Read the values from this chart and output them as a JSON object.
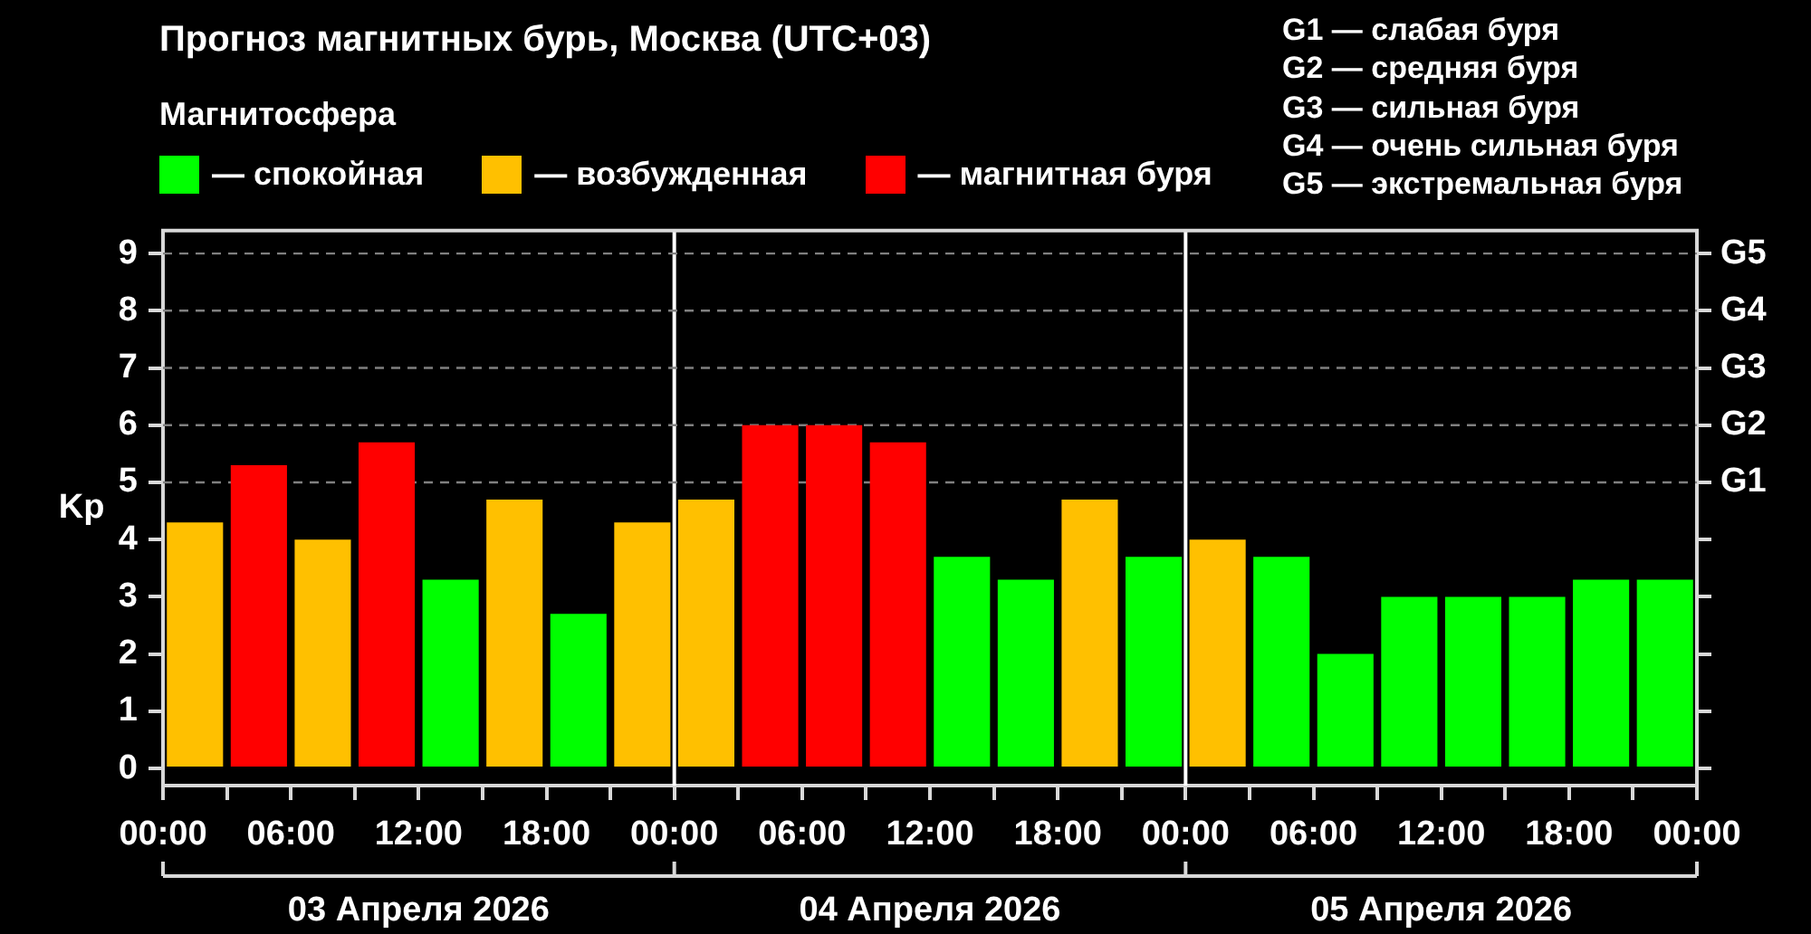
{
  "chart_data": {
    "type": "bar",
    "title": "Прогноз магнитных бурь, Москва (UTC+03)",
    "ylabel": "Kp",
    "legend": "top left",
    "legend_title": "Магнитосфера",
    "x": [
      "2026-04-03T01:30",
      "2026-04-03T04:30",
      "2026-04-03T07:30",
      "2026-04-03T10:30",
      "2026-04-03T13:30",
      "2026-04-03T16:30",
      "2026-04-03T19:30",
      "2026-04-03T22:30",
      "2026-04-04T01:30",
      "2026-04-04T04:30",
      "2026-04-04T07:30",
      "2026-04-04T10:30",
      "2026-04-04T13:30",
      "2026-04-04T16:30",
      "2026-04-04T19:30",
      "2026-04-04T22:30",
      "2026-04-05T01:30",
      "2026-04-05T04:30",
      "2026-04-05T07:30",
      "2026-04-05T10:30",
      "2026-04-05T13:30",
      "2026-04-05T16:30",
      "2026-04-05T19:30",
      "2026-04-05T22:30"
    ],
    "xlim": [
      "2026-04-03T00:00",
      "2026-04-06T00:00"
    ],
    "xticks": [
      {
        "value": "2026-04-03T00:00",
        "label": "00:00"
      },
      {
        "value": "2026-04-03T03:00",
        "label": null
      },
      {
        "value": "2026-04-03T06:00",
        "label": "06:00"
      },
      {
        "value": "2026-04-03T09:00",
        "label": null
      },
      {
        "value": "2026-04-03T12:00",
        "label": "12:00"
      },
      {
        "value": "2026-04-03T15:00",
        "label": null
      },
      {
        "value": "2026-04-03T18:00",
        "label": "18:00"
      },
      {
        "value": "2026-04-03T21:00",
        "label": null
      },
      {
        "value": "2026-04-04T00:00",
        "label": "00:00"
      },
      {
        "value": "2026-04-04T03:00",
        "label": null
      },
      {
        "value": "2026-04-04T06:00",
        "label": "06:00"
      },
      {
        "value": "2026-04-04T09:00",
        "label": null
      },
      {
        "value": "2026-04-04T12:00",
        "label": "12:00"
      },
      {
        "value": "2026-04-04T15:00",
        "label": null
      },
      {
        "value": "2026-04-04T18:00",
        "label": "18:00"
      },
      {
        "value": "2026-04-04T21:00",
        "label": null
      },
      {
        "value": "2026-04-05T00:00",
        "label": "00:00"
      },
      {
        "value": "2026-04-05T03:00",
        "label": null
      },
      {
        "value": "2026-04-05T06:00",
        "label": "06:00"
      },
      {
        "value": "2026-04-05T09:00",
        "label": null
      },
      {
        "value": "2026-04-05T12:00",
        "label": "12:00"
      },
      {
        "value": "2026-04-05T15:00",
        "label": null
      },
      {
        "value": "2026-04-05T18:00",
        "label": "18:00"
      },
      {
        "value": "2026-04-05T21:00",
        "label": null
      },
      {
        "value": "2026-04-06T00:00",
        "label": "00:00"
      }
    ],
    "x2lim": [
      "2026-04-03T00:00",
      "2026-04-06T00:00"
    ],
    "x2ticks": [
      {
        "value": "2026-04-03T00:00",
        "label": null
      },
      {
        "value": "2026-04-03T12:00",
        "label": "03 Апреля 2026"
      },
      {
        "value": "2026-04-04T00:00",
        "label": null
      },
      {
        "value": "2026-04-04T12:00",
        "label": "04 Апреля 2026"
      },
      {
        "value": "2026-04-05T00:00",
        "label": null
      },
      {
        "value": "2026-04-05T12:00",
        "label": "05 Апреля 2026"
      },
      {
        "value": "2026-04-06T00:00",
        "label": null
      }
    ],
    "ylim": [
      -0.3,
      9.4
    ],
    "yticks": [
      0,
      1,
      2,
      3,
      4,
      5,
      6,
      7,
      8,
      9
    ],
    "series": [
      {
        "name": "— спокойная",
        "color": "#00ff00",
        "values": [
          null,
          null,
          null,
          null,
          3.3,
          null,
          2.7,
          null,
          null,
          null,
          null,
          null,
          3.7,
          3.3,
          null,
          3.7,
          null,
          3.7,
          2.0,
          3.0,
          3.0,
          3.0,
          3.3,
          3.3
        ]
      },
      {
        "name": "— возбужденная",
        "color": "#ffc000",
        "values": [
          4.3,
          null,
          4.0,
          null,
          null,
          4.7,
          null,
          4.3,
          4.7,
          null,
          null,
          null,
          null,
          null,
          4.7,
          null,
          4.0,
          null,
          null,
          null,
          null,
          null,
          null,
          null
        ]
      },
      {
        "name": "— магнитная буря",
        "color": "#ff0000",
        "values": [
          null,
          5.3,
          null,
          5.7,
          null,
          null,
          null,
          null,
          null,
          6.0,
          6.0,
          5.7,
          null,
          null,
          null,
          null,
          null,
          null,
          null,
          null,
          null,
          null,
          null,
          null
        ]
      }
    ],
    "ref_lines": [
      {
        "axis": "x",
        "value": "2026-04-04T00:00",
        "color": "#ffffff"
      },
      {
        "axis": "x",
        "value": "2026-04-05T00:00",
        "color": "#ffffff"
      },
      {
        "axis": "y",
        "value": 5,
        "label": "G1",
        "color": "#808080",
        "line_style": "dashed"
      },
      {
        "axis": "y",
        "value": 6,
        "label": "G2",
        "color": "#808080",
        "line_style": "dashed"
      },
      {
        "axis": "y",
        "value": 7,
        "label": "G3",
        "color": "#808080",
        "line_style": "dashed"
      },
      {
        "axis": "y",
        "value": 8,
        "label": "G4",
        "color": "#808080",
        "line_style": "dashed"
      },
      {
        "axis": "y",
        "value": 9,
        "label": "G5",
        "color": "#808080",
        "line_style": "dashed"
      }
    ],
    "annotations": [
      "G1 — слабая буря",
      "G2 — средняя буря",
      "G3 — сильная буря",
      "G4 — очень сильная буря",
      "G5 — экстремальная буря"
    ]
  }
}
